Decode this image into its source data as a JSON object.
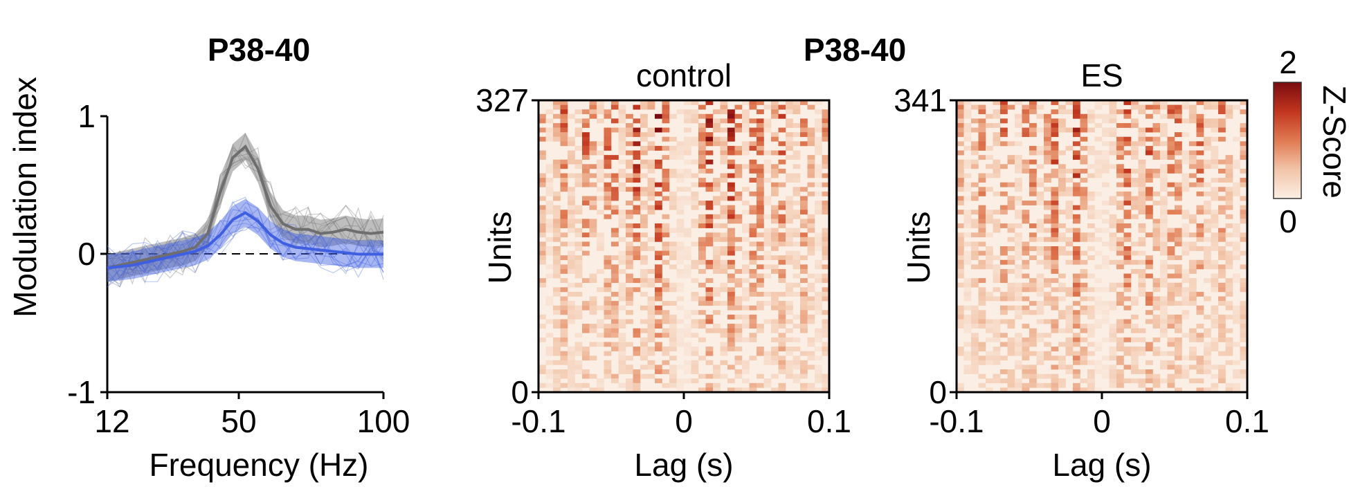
{
  "chart_data": [
    {
      "type": "line",
      "title": "P38-40",
      "xlabel": "Frequency (Hz)",
      "ylabel": "Modulation index",
      "xlim": [
        12,
        100
      ],
      "ylim": [
        -1,
        1
      ],
      "xticks": [
        "12",
        "50",
        "100"
      ],
      "yticks": [
        "-1",
        "0",
        "1"
      ],
      "reference_line": {
        "y": 0,
        "style": "dashed"
      },
      "grid": false,
      "colors": {
        "gray": "#6e6e6e",
        "blue": "#3f5ee0"
      },
      "x": [
        12,
        16,
        20,
        24,
        28,
        32,
        36,
        40,
        44,
        48,
        52,
        56,
        60,
        64,
        68,
        72,
        76,
        80,
        84,
        88,
        92,
        96,
        100
      ],
      "series": [
        {
          "color": "gray",
          "values": [
            -0.1,
            -0.08,
            -0.06,
            -0.04,
            -0.02,
            0.0,
            0.02,
            0.05,
            0.15,
            0.45,
            0.7,
            0.78,
            0.62,
            0.35,
            0.22,
            0.18,
            0.18,
            0.15,
            0.16,
            0.18,
            0.16,
            0.15,
            0.16
          ]
        },
        {
          "color": "blue",
          "values": [
            -0.1,
            -0.09,
            -0.08,
            -0.06,
            -0.04,
            -0.02,
            0.0,
            0.02,
            0.06,
            0.14,
            0.25,
            0.3,
            0.24,
            0.14,
            0.08,
            0.05,
            0.04,
            0.03,
            0.02,
            0.01,
            0.0,
            0.0,
            0.0
          ]
        }
      ]
    },
    {
      "type": "heatmap",
      "supertitle": "P38-40",
      "title": "control",
      "xlabel": "Lag (s)",
      "ylabel": "Units",
      "xlim": [
        -0.1,
        0.1
      ],
      "ylim": [
        0,
        327
      ],
      "xticks": [
        "-0.1",
        "0",
        "0.1"
      ],
      "yticks": [
        "0",
        "327"
      ],
      "n_units": 327
    },
    {
      "type": "heatmap",
      "title": "ES",
      "xlabel": "Lag (s)",
      "ylabel": "Units",
      "xlim": [
        -0.1,
        0.1
      ],
      "ylim": [
        0,
        341
      ],
      "xticks": [
        "-0.1",
        "0",
        "0.1"
      ],
      "yticks": [
        "0",
        "341"
      ],
      "n_units": 341
    }
  ],
  "colorbar": {
    "label": "Z-Score",
    "min_label": "0",
    "max_label": "2",
    "colors": [
      "#fbeee4",
      "#f2c4a8",
      "#e07a52",
      "#c1351e",
      "#7a0b10"
    ]
  }
}
